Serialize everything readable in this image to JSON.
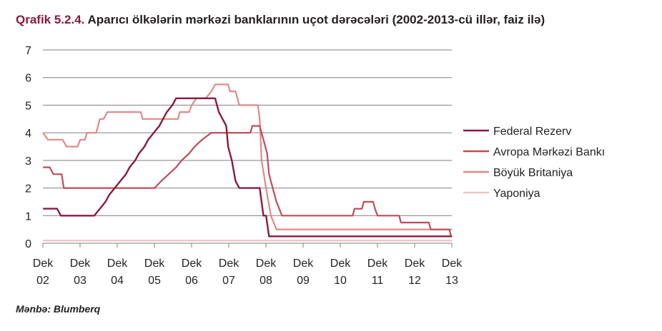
{
  "title_prefix": "Qrafik 5.2.4.",
  "title_text": "Aparıcı ölkələrin mərkəzi banklarının uçot dərəcələri (2002-2013-cü illər, faiz ilə)",
  "source": "Mənbə: Blumberq",
  "colors": {
    "federal": "#8b1a3c",
    "ecb": "#bd4d59",
    "uk": "#de8a87",
    "japan": "#f1c4c4",
    "grid": "#7f7f7f"
  },
  "chart_data": {
    "type": "line",
    "title": "Aparıcı ölkələrin mərkəzi banklarının uçot dərəcələri (2002-2013-cü illər, faiz ilə)",
    "xlabel": "",
    "ylabel": "",
    "ylim": [
      0,
      7
    ],
    "xlim": [
      2002.917,
      2013.917
    ],
    "y_ticks": [
      "0",
      "1",
      "2",
      "3",
      "4",
      "5",
      "6",
      "7"
    ],
    "x_ticks": [
      {
        "line1": "Dek",
        "line2": "02"
      },
      {
        "line1": "Dek",
        "line2": "03"
      },
      {
        "line1": "Dek",
        "line2": "04"
      },
      {
        "line1": "Dek",
        "line2": "05"
      },
      {
        "line1": "Dek",
        "line2": "06"
      },
      {
        "line1": "Dek",
        "line2": "07"
      },
      {
        "line1": "Dek",
        "line2": "08"
      },
      {
        "line1": "Dek",
        "line2": "09"
      },
      {
        "line1": "Dek",
        "line2": "10"
      },
      {
        "line1": "Dek",
        "line2": "11"
      },
      {
        "line1": "Dek",
        "line2": "12"
      },
      {
        "line1": "Dek",
        "line2": "13"
      }
    ],
    "grid": true,
    "legend_position": "right",
    "series": [
      {
        "name": "Federal Rezerv",
        "color_key": "federal",
        "points": [
          [
            2002.92,
            1.25
          ],
          [
            2003.3,
            1.25
          ],
          [
            2003.4,
            1.0
          ],
          [
            2004.3,
            1.0
          ],
          [
            2004.45,
            1.25
          ],
          [
            2004.6,
            1.5
          ],
          [
            2004.7,
            1.75
          ],
          [
            2004.85,
            2.0
          ],
          [
            2005.0,
            2.25
          ],
          [
            2005.15,
            2.5
          ],
          [
            2005.25,
            2.75
          ],
          [
            2005.4,
            3.0
          ],
          [
            2005.5,
            3.25
          ],
          [
            2005.65,
            3.5
          ],
          [
            2005.75,
            3.75
          ],
          [
            2005.9,
            4.0
          ],
          [
            2006.05,
            4.25
          ],
          [
            2006.15,
            4.5
          ],
          [
            2006.25,
            4.75
          ],
          [
            2006.4,
            5.0
          ],
          [
            2006.5,
            5.25
          ],
          [
            2007.55,
            5.25
          ],
          [
            2007.65,
            4.75
          ],
          [
            2007.75,
            4.5
          ],
          [
            2007.85,
            4.25
          ],
          [
            2007.9,
            3.5
          ],
          [
            2008.0,
            3.0
          ],
          [
            2008.1,
            2.25
          ],
          [
            2008.2,
            2.0
          ],
          [
            2008.75,
            2.0
          ],
          [
            2008.8,
            1.5
          ],
          [
            2008.85,
            1.0
          ],
          [
            2008.92,
            1.0
          ],
          [
            2009.0,
            0.25
          ],
          [
            2013.92,
            0.25
          ]
        ]
      },
      {
        "name": "Avropa Mərkəzi Bankı",
        "color_key": "ecb",
        "points": [
          [
            2002.92,
            2.75
          ],
          [
            2003.1,
            2.75
          ],
          [
            2003.2,
            2.5
          ],
          [
            2003.42,
            2.5
          ],
          [
            2003.48,
            2.0
          ],
          [
            2005.92,
            2.0
          ],
          [
            2006.1,
            2.25
          ],
          [
            2006.3,
            2.5
          ],
          [
            2006.5,
            2.75
          ],
          [
            2006.65,
            3.0
          ],
          [
            2006.85,
            3.25
          ],
          [
            2007.0,
            3.5
          ],
          [
            2007.2,
            3.75
          ],
          [
            2007.45,
            4.0
          ],
          [
            2008.5,
            4.0
          ],
          [
            2008.55,
            4.25
          ],
          [
            2008.75,
            4.25
          ],
          [
            2008.85,
            3.75
          ],
          [
            2008.95,
            3.25
          ],
          [
            2009.0,
            2.5
          ],
          [
            2009.1,
            2.0
          ],
          [
            2009.2,
            1.5
          ],
          [
            2009.35,
            1.0
          ],
          [
            2011.25,
            1.0
          ],
          [
            2011.3,
            1.25
          ],
          [
            2011.5,
            1.25
          ],
          [
            2011.55,
            1.5
          ],
          [
            2011.8,
            1.5
          ],
          [
            2011.85,
            1.25
          ],
          [
            2011.92,
            1.0
          ],
          [
            2012.5,
            1.0
          ],
          [
            2012.55,
            0.75
          ],
          [
            2013.3,
            0.75
          ],
          [
            2013.35,
            0.5
          ],
          [
            2013.85,
            0.5
          ],
          [
            2013.9,
            0.25
          ]
        ]
      },
      {
        "name": "Böyük Britaniya",
        "color_key": "uk",
        "points": [
          [
            2002.92,
            4.0
          ],
          [
            2003.05,
            3.75
          ],
          [
            2003.45,
            3.75
          ],
          [
            2003.55,
            3.5
          ],
          [
            2003.85,
            3.5
          ],
          [
            2003.92,
            3.75
          ],
          [
            2004.05,
            3.75
          ],
          [
            2004.1,
            4.0
          ],
          [
            2004.35,
            4.0
          ],
          [
            2004.45,
            4.5
          ],
          [
            2004.55,
            4.5
          ],
          [
            2004.65,
            4.75
          ],
          [
            2005.55,
            4.75
          ],
          [
            2005.6,
            4.5
          ],
          [
            2006.55,
            4.5
          ],
          [
            2006.6,
            4.75
          ],
          [
            2006.85,
            4.75
          ],
          [
            2006.92,
            5.0
          ],
          [
            2007.05,
            5.25
          ],
          [
            2007.3,
            5.25
          ],
          [
            2007.45,
            5.5
          ],
          [
            2007.55,
            5.75
          ],
          [
            2007.9,
            5.75
          ],
          [
            2007.95,
            5.5
          ],
          [
            2008.1,
            5.5
          ],
          [
            2008.15,
            5.25
          ],
          [
            2008.2,
            5.0
          ],
          [
            2008.7,
            5.0
          ],
          [
            2008.75,
            4.5
          ],
          [
            2008.8,
            3.0
          ],
          [
            2008.92,
            2.0
          ],
          [
            2009.05,
            1.0
          ],
          [
            2009.2,
            0.5
          ],
          [
            2013.92,
            0.5
          ]
        ]
      },
      {
        "name": "Yaponiya",
        "color_key": "japan",
        "points": [
          [
            2002.92,
            0.1
          ],
          [
            2013.92,
            0.1
          ]
        ]
      }
    ]
  }
}
